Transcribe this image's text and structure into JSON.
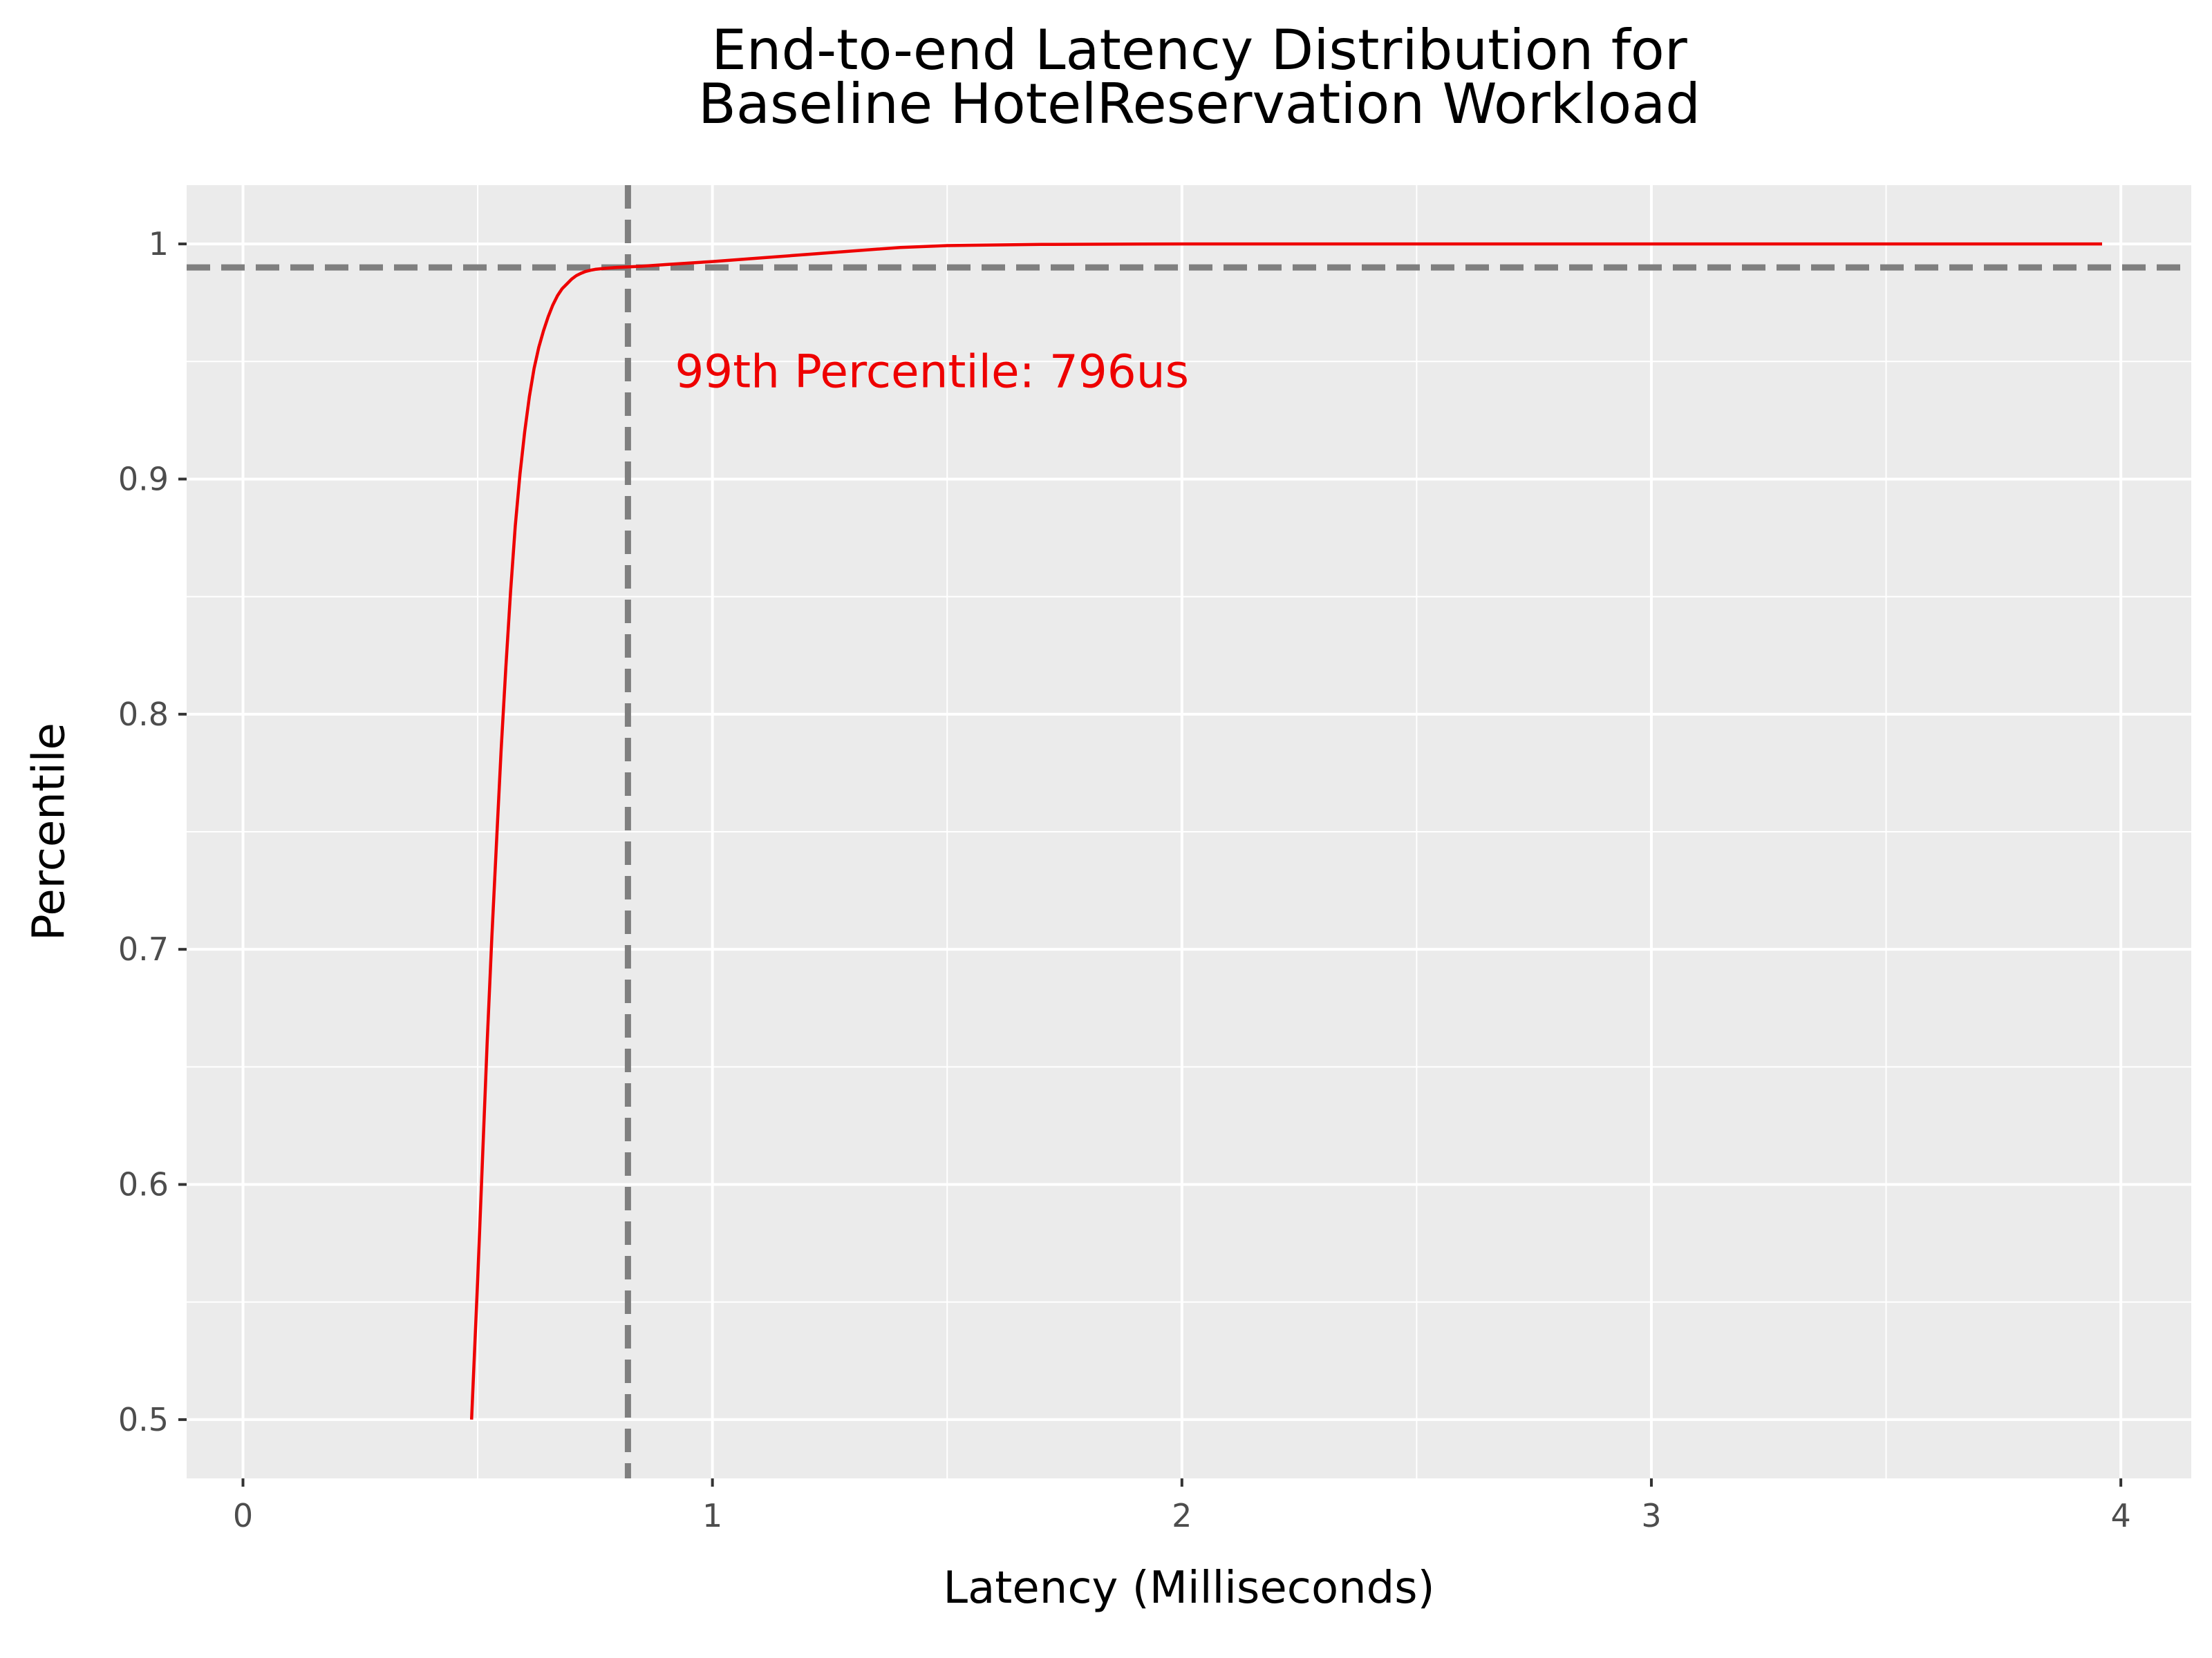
{
  "chart_data": {
    "type": "line",
    "title_lines": [
      "End-to-end Latency Distribution for",
      "Baseline HotelReservation Workload"
    ],
    "xlabel": "Latency (Milliseconds)",
    "ylabel": "Percentile",
    "xlim": [
      -0.12,
      4.15
    ],
    "ylim": [
      0.475,
      1.025
    ],
    "x_ticks": [
      0,
      1,
      2,
      3,
      4
    ],
    "x_tick_labels": [
      "0",
      "1",
      "2",
      "3",
      "4"
    ],
    "y_ticks": [
      0.5,
      0.6,
      0.7,
      0.8,
      0.9,
      1.0
    ],
    "y_tick_labels": [
      "0.5",
      "0.6",
      "0.7",
      "0.8",
      "0.9",
      "1"
    ],
    "grid": true,
    "series": [
      {
        "color": "#ee0000",
        "x": [
          0.487,
          0.5,
          0.51,
          0.52,
          0.53,
          0.54,
          0.55,
          0.56,
          0.57,
          0.58,
          0.59,
          0.6,
          0.61,
          0.62,
          0.63,
          0.64,
          0.65,
          0.66,
          0.67,
          0.68,
          0.69,
          0.7,
          0.71,
          0.72,
          0.73,
          0.74,
          0.75,
          0.77,
          0.796,
          0.85,
          0.9,
          1.0,
          1.1,
          1.2,
          1.3,
          1.4,
          1.5,
          1.7,
          2.0,
          2.5,
          3.0,
          3.5,
          3.96
        ],
        "y": [
          0.5,
          0.56,
          0.61,
          0.66,
          0.705,
          0.745,
          0.785,
          0.82,
          0.852,
          0.88,
          0.902,
          0.92,
          0.935,
          0.947,
          0.956,
          0.963,
          0.969,
          0.974,
          0.978,
          0.981,
          0.983,
          0.985,
          0.9865,
          0.9875,
          0.9883,
          0.9888,
          0.9892,
          0.9896,
          0.99,
          0.9905,
          0.9912,
          0.9925,
          0.994,
          0.9955,
          0.997,
          0.9985,
          0.9993,
          0.9998,
          1.0,
          1.0,
          1.0,
          1.0,
          1.0
        ]
      }
    ],
    "reference_lines": {
      "vertical_x": 0.82,
      "horizontal_y": 0.99,
      "color": "#7f7f7f"
    },
    "annotation": {
      "text": "99th Percentile: 796us",
      "x": 0.92,
      "y": 0.939,
      "color": "#ee0000"
    }
  }
}
